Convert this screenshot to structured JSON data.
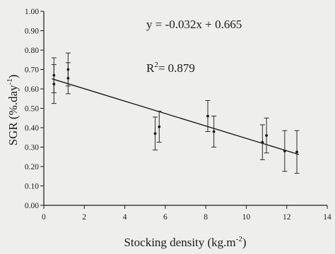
{
  "chart_data": {
    "type": "scatter",
    "xlabel": "Stocking density (kg.m",
    "xlabel_sup": "-2",
    "xlabel_end": ")",
    "ylabel": "SGR (%.day",
    "ylabel_sup": "-1",
    "ylabel_end": ")",
    "xlim": [
      0,
      14
    ],
    "ylim": [
      0,
      1
    ],
    "x_ticks": [
      "0",
      "2",
      "4",
      "6",
      "8",
      "10",
      "12",
      "14"
    ],
    "y_ticks": [
      "0.00",
      "0.10",
      "0.20",
      "0.30",
      "0.40",
      "0.50",
      "0.60",
      "0.70",
      "0.80",
      "0.90",
      "1.00"
    ],
    "grid": false,
    "points": [
      {
        "x": 0.5,
        "y": 0.67,
        "err": 0.09
      },
      {
        "x": 0.5,
        "y": 0.625,
        "err": 0.1
      },
      {
        "x": 1.2,
        "y": 0.7,
        "err": 0.085
      },
      {
        "x": 1.2,
        "y": 0.655,
        "err": 0.08
      },
      {
        "x": 5.5,
        "y": 0.37,
        "err": 0.085
      },
      {
        "x": 5.7,
        "y": 0.405,
        "err": 0.08
      },
      {
        "x": 8.1,
        "y": 0.46,
        "err": 0.08
      },
      {
        "x": 8.4,
        "y": 0.38,
        "err": 0.08
      },
      {
        "x": 10.8,
        "y": 0.325,
        "err": 0.09
      },
      {
        "x": 11.0,
        "y": 0.36,
        "err": 0.09
      },
      {
        "x": 11.9,
        "y": 0.28,
        "err": 0.105
      },
      {
        "x": 12.5,
        "y": 0.275,
        "err": 0.11
      }
    ],
    "trendline": {
      "slope": -0.032,
      "intercept": 0.665,
      "x_range": [
        0.4,
        12.6
      ]
    },
    "equation": "y = -0.032x + 0.665",
    "r2_prefix": "R",
    "r2_sup": "2",
    "r2_value": "= 0.879"
  }
}
